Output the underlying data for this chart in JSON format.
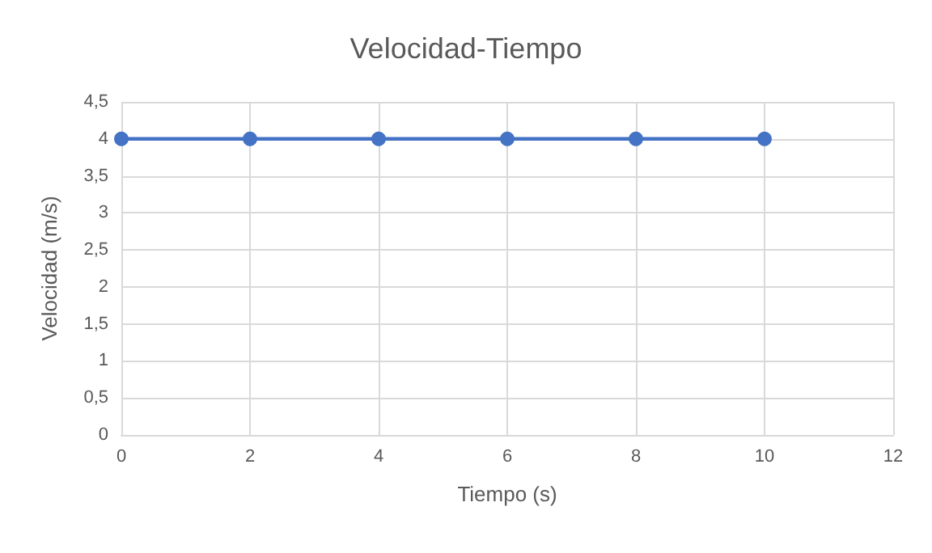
{
  "chart_data": {
    "type": "line",
    "title": "Velocidad-Tiempo",
    "xlabel": "Tiempo (s)",
    "ylabel": "Velocidad (m/s)",
    "x": [
      0,
      2,
      4,
      6,
      8,
      10
    ],
    "series": [
      {
        "color": "#4472c4",
        "values": [
          4,
          4,
          4,
          4,
          4,
          4
        ]
      }
    ],
    "xlim": [
      0,
      12
    ],
    "xticks": [
      0,
      2,
      4,
      6,
      8,
      10,
      12
    ],
    "ylim": [
      0,
      4.5
    ],
    "yticks": [
      0,
      {
        "value": 0.5,
        "label": "0,5"
      },
      1,
      {
        "value": 1.5,
        "label": "1,5"
      },
      2,
      {
        "value": 2.5,
        "label": "2,5"
      },
      3,
      {
        "value": 3.5,
        "label": "3,5"
      },
      4,
      {
        "value": 4.5,
        "label": "4,5"
      }
    ],
    "grid": true,
    "marker": "circle",
    "line_style": "solid"
  }
}
